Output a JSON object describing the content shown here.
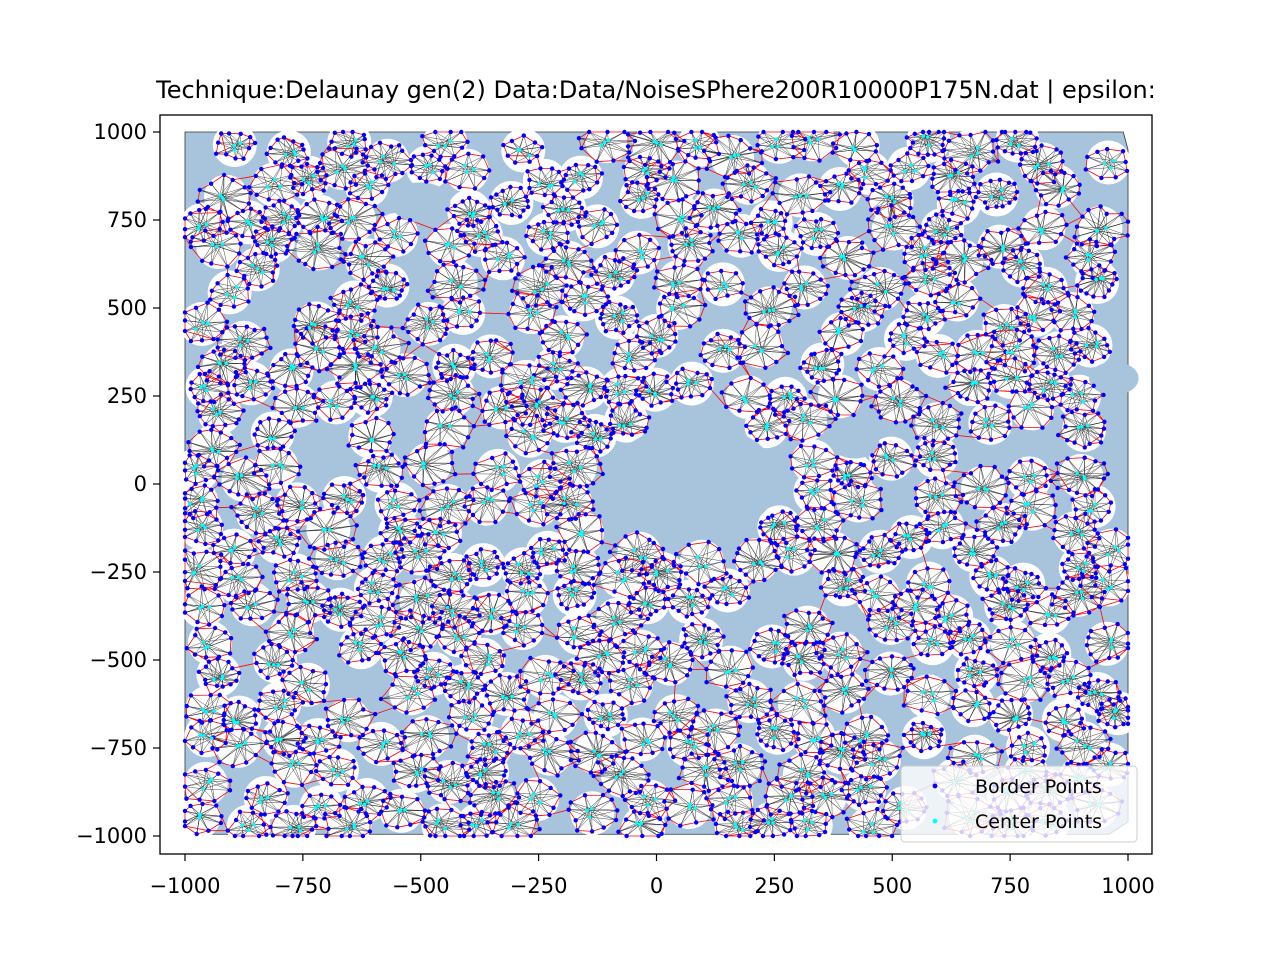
{
  "chart_data": {
    "type": "scatter",
    "title": "Technique:Delaunay  gen(2) Data:Data/NoiseSPhere200R10000P175N.dat | epsilon: ",
    "xlabel": "",
    "ylabel": "",
    "xlim": [
      -1050,
      1050
    ],
    "ylim": [
      -1050,
      1050
    ],
    "xticks": [
      -1000,
      -750,
      -500,
      -250,
      0,
      250,
      500,
      750,
      1000
    ],
    "yticks": [
      1000,
      750,
      500,
      250,
      0,
      -250,
      -500,
      -750,
      -1000
    ],
    "xtick_labels": [
      "−1000",
      "−750",
      "−500",
      "−250",
      "0",
      "250",
      "500",
      "750",
      "1000"
    ],
    "ytick_labels": [
      "1000",
      "750",
      "500",
      "250",
      "0",
      "−250",
      "−500",
      "−750",
      "−1000"
    ],
    "grid": false,
    "legend_position": "bottom-right",
    "series": [
      {
        "name": "Border Points",
        "color": "#0000ff",
        "marker": "dot"
      },
      {
        "name": "Center Points",
        "color": "#00ffff",
        "marker": "dot"
      }
    ],
    "hull_fill_color": "#a8c4dc",
    "delaunay_edge_colors": {
      "border": "#ff0000",
      "interior": "#000000"
    },
    "empty_regions": [
      {
        "center": [
          80,
          10
        ],
        "approx_radius": 170
      },
      {
        "center": [
          -500,
          800
        ],
        "approx_radius": 60
      },
      {
        "center": [
          -780,
          530
        ],
        "approx_radius": 40
      },
      {
        "center": [
          -680,
          70
        ],
        "approx_radius": 40
      },
      {
        "center": [
          420,
          120
        ],
        "approx_radius": 50
      },
      {
        "center": [
          970,
          300
        ],
        "approx_radius": 50
      },
      {
        "center": [
          290,
          -320
        ],
        "approx_radius": 30
      }
    ]
  }
}
